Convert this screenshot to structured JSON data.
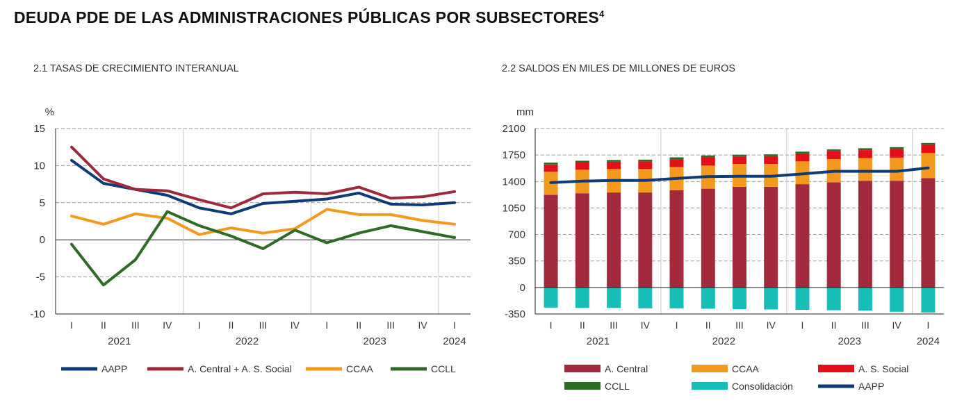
{
  "header": {
    "title": "DEUDA PDE DE LAS ADMINISTRACIONES  PÚBLICAS POR SUBSECTORES",
    "title_superscript": "4"
  },
  "chart1": {
    "title": "2.1 TASAS DE CRECIMIENTO INTERANUAL",
    "unit": "%",
    "ylim": [
      -10,
      15
    ],
    "yticks": [
      15,
      10,
      5,
      0,
      -5,
      -10
    ],
    "ytick_labels": [
      "15",
      "10",
      "5",
      "0",
      "-5",
      "-10"
    ],
    "quarters": [
      "I",
      "II",
      "III",
      "IV",
      "I",
      "II",
      "III",
      "IV",
      "I",
      "II",
      "III",
      "IV",
      "I"
    ],
    "years": [
      "2021",
      "2022",
      "2023",
      "2024"
    ],
    "legend": [
      "AAPP",
      "A. Central + A. S. Social",
      "CCAA",
      "CCLL"
    ]
  },
  "chart2": {
    "title": "2.2 SALDOS EN MILES DE MILLONES DE EUROS",
    "unit": "mm",
    "ylim": [
      -350,
      2100
    ],
    "yticks": [
      2100,
      1750,
      1400,
      1050,
      700,
      350,
      0,
      -350
    ],
    "ytick_labels": [
      "2100",
      "1750",
      "1400",
      "1050",
      "700",
      "350",
      "0",
      "-350"
    ],
    "quarters": [
      "I",
      "II",
      "III",
      "IV",
      "I",
      "II",
      "III",
      "IV",
      "I",
      "II",
      "III",
      "IV",
      "I"
    ],
    "years": [
      "2021",
      "2022",
      "2023",
      "2024"
    ],
    "legend": [
      "A. Central",
      "CCAA",
      "A. S. Social",
      "CCLL",
      "Consolidación",
      "AAPP"
    ]
  },
  "chart_data": [
    {
      "type": "line",
      "title": "2.1 TASAS DE CRECIMIENTO INTERANUAL",
      "ylabel": "%",
      "ylim": [
        -10,
        15
      ],
      "grid": true,
      "legend_position": "bottom",
      "categories": [
        "2021 I",
        "2021 II",
        "2021 III",
        "2021 IV",
        "2022 I",
        "2022 II",
        "2022 III",
        "2022 IV",
        "2023 I",
        "2023 II",
        "2023 III",
        "2023 IV",
        "2024 I"
      ],
      "series": [
        {
          "name": "AAPP",
          "color": "#0d3b78",
          "values": [
            10.7,
            7.6,
            6.8,
            6.0,
            4.3,
            3.5,
            4.9,
            5.2,
            5.5,
            6.3,
            4.8,
            4.7,
            5.0
          ]
        },
        {
          "name": "A. Central + A. S. Social",
          "color": "#a0283c",
          "values": [
            12.5,
            8.2,
            6.8,
            6.6,
            5.4,
            4.3,
            6.2,
            6.4,
            6.2,
            7.1,
            5.6,
            5.8,
            6.5
          ]
        },
        {
          "name": "CCAA",
          "color": "#f39a1e",
          "values": [
            3.2,
            2.1,
            3.5,
            2.9,
            0.7,
            1.6,
            0.9,
            1.5,
            4.1,
            3.4,
            3.4,
            2.6,
            2.1
          ]
        },
        {
          "name": "CCLL",
          "color": "#2e6b24",
          "values": [
            -0.6,
            -6.1,
            -2.7,
            3.8,
            1.9,
            0.5,
            -1.2,
            1.3,
            -0.4,
            0.9,
            1.9,
            1.1,
            0.3
          ]
        }
      ]
    },
    {
      "type": "bar",
      "stacked": true,
      "title": "2.2 SALDOS EN MILES DE MILLONES DE EUROS",
      "ylabel": "mm",
      "ylim": [
        -350,
        2100
      ],
      "grid": true,
      "legend_position": "bottom",
      "categories": [
        "2021 I",
        "2021 II",
        "2021 III",
        "2021 IV",
        "2022 I",
        "2022 II",
        "2022 III",
        "2022 IV",
        "2023 I",
        "2023 II",
        "2023 III",
        "2023 IV",
        "2024 I"
      ],
      "series": [
        {
          "name": "A. Central",
          "color": "#a32a3d",
          "values": [
            1225,
            1245,
            1255,
            1255,
            1285,
            1305,
            1330,
            1330,
            1365,
            1390,
            1410,
            1410,
            1445
          ]
        },
        {
          "name": "CCAA",
          "color": "#f39a1e",
          "values": [
            305,
            310,
            310,
            310,
            305,
            305,
            300,
            300,
            300,
            305,
            300,
            305,
            330
          ]
        },
        {
          "name": "A. S. Social",
          "color": "#e3101a",
          "values": [
            95,
            95,
            95,
            100,
            105,
            110,
            100,
            105,
            105,
            105,
            105,
            115,
            110
          ]
        },
        {
          "name": "CCLL",
          "color": "#2e6b24",
          "values": [
            24,
            24,
            24,
            24,
            24,
            24,
            24,
            24,
            24,
            24,
            24,
            24,
            24
          ]
        },
        {
          "name": "Consolidación",
          "color": "#17bdb7",
          "values": [
            -265,
            -270,
            -270,
            -275,
            -275,
            -280,
            -285,
            -290,
            -295,
            -300,
            -305,
            -320,
            -330
          ]
        },
        {
          "name": "AAPP",
          "color": "#0d3b78",
          "type": "line",
          "values": [
            1385,
            1405,
            1415,
            1415,
            1440,
            1465,
            1470,
            1470,
            1500,
            1535,
            1535,
            1535,
            1580
          ]
        }
      ]
    }
  ]
}
